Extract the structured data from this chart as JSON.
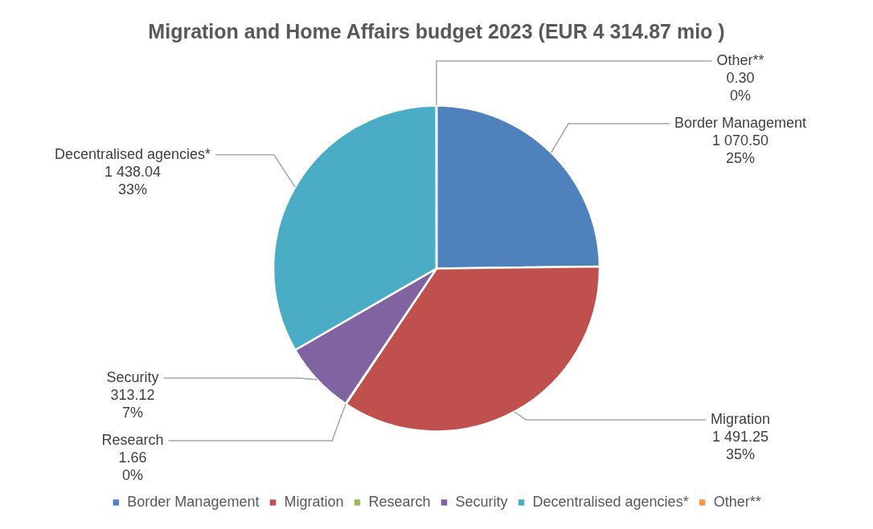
{
  "chart_data": {
    "type": "pie",
    "title": "Migration and Home Affairs budget 2023 (EUR 4 314.87 mio )",
    "categories": [
      "Border Management",
      "Migration",
      "Research",
      "Security",
      "Decentralised agencies*",
      "Other**"
    ],
    "values": [
      1070.5,
      1491.25,
      1.66,
      313.12,
      1438.04,
      0.3
    ],
    "colors": [
      "#4f81bd",
      "#c0504d",
      "#9bbb59",
      "#8064a2",
      "#4bacc6",
      "#f79646"
    ],
    "value_labels": [
      "1 070.50\n25%",
      "1 491.25\n35%",
      "1.66\n0%",
      "313.12\n7%",
      "1 438.04\n33%",
      "0.30\n0%"
    ],
    "legend": "bottom"
  }
}
